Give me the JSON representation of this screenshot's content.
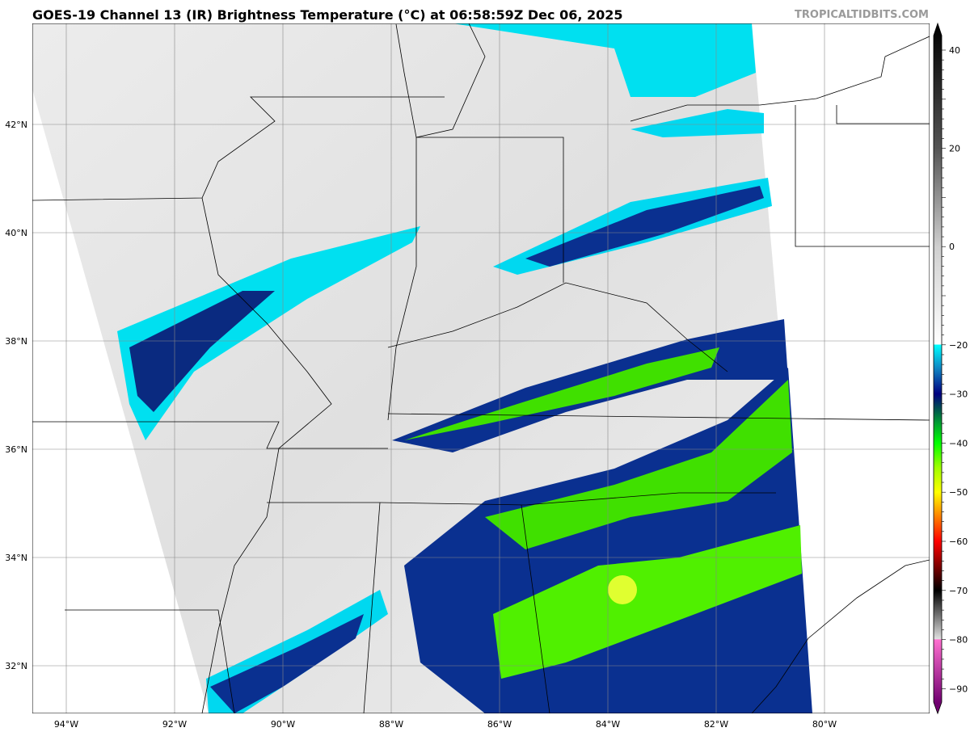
{
  "title": "GOES-19 Channel 13 (IR) Brightness Temperature (°C) at 06:58:59Z Dec 06, 2025",
  "credit": "TROPICALTIDBITS.COM",
  "map": {
    "lon_labels": [
      "94°W",
      "92°W",
      "90°W",
      "88°W",
      "86°W",
      "84°W",
      "82°W",
      "80°W"
    ],
    "lon_values": [
      -94,
      -92,
      -90,
      -88,
      -86,
      -84,
      -82,
      -80
    ],
    "lat_labels": [
      "42°N",
      "40°N",
      "38°N",
      "36°N",
      "34°N",
      "32°N"
    ],
    "lat_values": [
      42,
      40,
      38,
      36,
      34,
      32
    ],
    "extent": {
      "lon": [
        -94.6,
        -78.0
      ],
      "lat": [
        31.1,
        43.8
      ]
    },
    "grid": true
  },
  "colorbar": {
    "labels": [
      "40",
      "20",
      "0",
      "−20",
      "−30",
      "−40",
      "−50",
      "−60",
      "−70",
      "−80",
      "−90"
    ],
    "values": [
      40,
      20,
      0,
      -20,
      -30,
      -40,
      -50,
      -60,
      -70,
      -80,
      -90
    ],
    "range": [
      -93,
      45
    ],
    "stops": [
      {
        "v": 45,
        "c": "#000000"
      },
      {
        "v": 20,
        "c": "#555555"
      },
      {
        "v": 0,
        "c": "#cfcfcf"
      },
      {
        "v": -19.9,
        "c": "#ffffff"
      },
      {
        "v": -20,
        "c": "#00ffff"
      },
      {
        "v": -25,
        "c": "#1080c0"
      },
      {
        "v": -30,
        "c": "#000080"
      },
      {
        "v": -33,
        "c": "#005050"
      },
      {
        "v": -36,
        "c": "#00a030"
      },
      {
        "v": -40,
        "c": "#00ff00"
      },
      {
        "v": -45,
        "c": "#a0ff00"
      },
      {
        "v": -50,
        "c": "#ffff00"
      },
      {
        "v": -55,
        "c": "#ff8000"
      },
      {
        "v": -60,
        "c": "#ff0000"
      },
      {
        "v": -65,
        "c": "#800000"
      },
      {
        "v": -70,
        "c": "#000000"
      },
      {
        "v": -79.9,
        "c": "#e0e0e0"
      },
      {
        "v": -80,
        "c": "#ff70d0"
      },
      {
        "v": -93,
        "c": "#700070"
      }
    ]
  }
}
